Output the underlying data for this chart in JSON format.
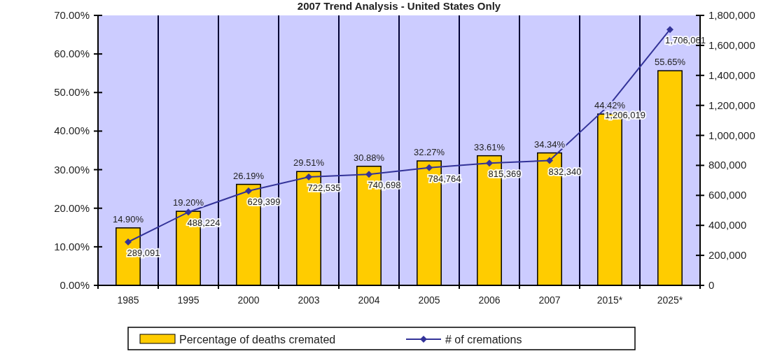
{
  "chart_data": {
    "type": "bar",
    "title": "2007 Trend Analysis - United States Only",
    "categories": [
      "1985",
      "1995",
      "2000",
      "2003",
      "2004",
      "2005",
      "2006",
      "2007",
      "2015*",
      "2025*"
    ],
    "series": [
      {
        "name": "Percentage of deaths cremated",
        "color": "#ffcc00",
        "values": [
          14.9,
          19.2,
          26.19,
          29.51,
          30.88,
          32.27,
          33.61,
          34.34,
          44.42,
          55.65
        ],
        "value_labels": [
          "14.90%",
          "19.20%",
          "26.19%",
          "29.51%",
          "30.88%",
          "32.27%",
          "33.61%",
          "34.34%",
          "44.42%",
          "55.65%"
        ]
      },
      {
        "name": "# of cremations",
        "type": "line",
        "axis": "y2",
        "color": "#333399",
        "marker": "diamond",
        "values": [
          289091,
          488224,
          629399,
          722535,
          740698,
          784764,
          815369,
          832340,
          1206019,
          1706061
        ],
        "value_labels": [
          "289,091",
          "488,224",
          "629,399",
          "722,535",
          "740,698",
          "784,764",
          "815,369",
          "832,340",
          "1,206,019",
          "1,706,061"
        ]
      }
    ],
    "ylim": [
      0,
      70
    ],
    "yticks": [
      {
        "value": 0,
        "label": "0.00%"
      },
      {
        "value": 10,
        "label": "10.00%"
      },
      {
        "value": 20,
        "label": "20.00%"
      },
      {
        "value": 30,
        "label": "30.00%"
      },
      {
        "value": 40,
        "label": "40.00%"
      },
      {
        "value": 50,
        "label": "50.00%"
      },
      {
        "value": 60,
        "label": "60.00%"
      },
      {
        "value": 70,
        "label": "70.00%"
      }
    ],
    "y2lim": [
      0,
      1800000
    ],
    "y2ticks": [
      {
        "value": 0,
        "label": "0"
      },
      {
        "value": 200000,
        "label": "200,000"
      },
      {
        "value": 400000,
        "label": "400,000"
      },
      {
        "value": 600000,
        "label": "600,000"
      },
      {
        "value": 800000,
        "label": "800,000"
      },
      {
        "value": 1000000,
        "label": "1,000,000"
      },
      {
        "value": 1200000,
        "label": "1,200,000"
      },
      {
        "value": 1400000,
        "label": "1,400,000"
      },
      {
        "value": 1600000,
        "label": "1,600,000"
      },
      {
        "value": 1800000,
        "label": "1,800,000"
      }
    ],
    "grid": "x",
    "legend": "bottom"
  }
}
